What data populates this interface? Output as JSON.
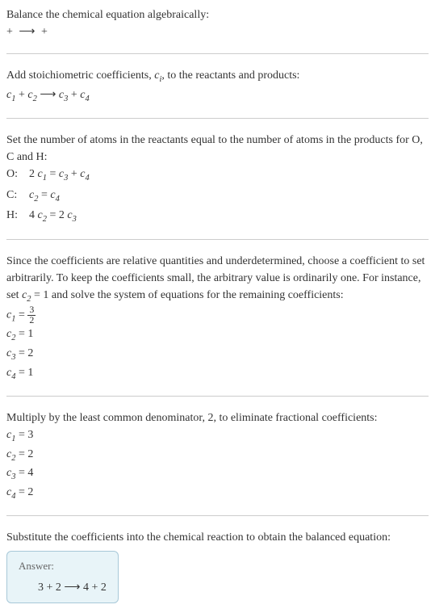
{
  "intro": {
    "line1": "Balance the chemical equation algebraically:",
    "reaction_left": " + ",
    "reaction_arrow": "⟶",
    "reaction_right": " + "
  },
  "stoich": {
    "text": "Add stoichiometric coefficients, ",
    "ci": "c",
    "ci_sub": "i",
    "text2": ", to the reactants and products:",
    "eq_c1": "c",
    "eq_c1_sub": "1",
    "eq_plus1": " + ",
    "eq_c2": "c",
    "eq_c2_sub": "2",
    "eq_arrow": " ⟶ ",
    "eq_c3": "c",
    "eq_c3_sub": "3",
    "eq_plus2": " + ",
    "eq_c4": "c",
    "eq_c4_sub": "4"
  },
  "atoms": {
    "text": "Set the number of atoms in the reactants equal to the number of atoms in the products for O, C and H:",
    "o_label": "O:",
    "o_eq_pre": "2 ",
    "o_c1": "c",
    "o_c1_sub": "1",
    "o_eq_mid": " = ",
    "o_c3": "c",
    "o_c3_sub": "3",
    "o_plus": " + ",
    "o_c4": "c",
    "o_c4_sub": "4",
    "c_label": "C:",
    "c_c2": "c",
    "c_c2_sub": "2",
    "c_eq": " = ",
    "c_c4": "c",
    "c_c4_sub": "4",
    "h_label": "H:",
    "h_pre": "4 ",
    "h_c2": "c",
    "h_c2_sub": "2",
    "h_eq": " = 2 ",
    "h_c3": "c",
    "h_c3_sub": "3"
  },
  "solve": {
    "text": "Since the coefficients are relative quantities and underdetermined, choose a coefficient to set arbitrarily. To keep the coefficients small, the arbitrary value is ordinarily one. For instance, set ",
    "c2": "c",
    "c2_sub": "2",
    "text2": " = 1 and solve the system of equations for the remaining coefficients:",
    "r1_c": "c",
    "r1_sub": "1",
    "r1_eq": " = ",
    "r1_num": "3",
    "r1_den": "2",
    "r2_c": "c",
    "r2_sub": "2",
    "r2_val": " = 1",
    "r3_c": "c",
    "r3_sub": "3",
    "r3_val": " = 2",
    "r4_c": "c",
    "r4_sub": "4",
    "r4_val": " = 1"
  },
  "multiply": {
    "text": "Multiply by the least common denominator, 2, to eliminate fractional coefficients:",
    "r1_c": "c",
    "r1_sub": "1",
    "r1_val": " = 3",
    "r2_c": "c",
    "r2_sub": "2",
    "r2_val": " = 2",
    "r3_c": "c",
    "r3_sub": "3",
    "r3_val": " = 4",
    "r4_c": "c",
    "r4_sub": "4",
    "r4_val": " = 2"
  },
  "final": {
    "text": "Substitute the coefficients into the chemical reaction to obtain the balanced equation:",
    "answer_label": "Answer:",
    "eq": "3  + 2  ⟶ 4  + 2 "
  },
  "colors": {
    "text": "#333333",
    "hr": "#cccccc",
    "answer_bg": "#e8f4f8",
    "answer_border": "#a8c8d8",
    "answer_label": "#666666"
  }
}
